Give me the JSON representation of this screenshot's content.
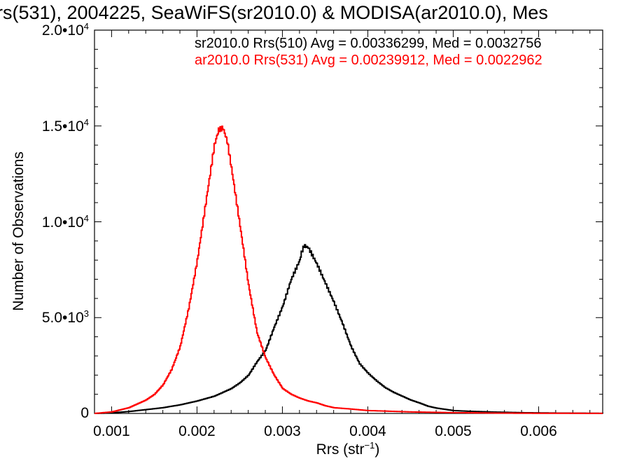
{
  "chart_data": {
    "type": "line",
    "title": "rs(531), 2004225, SeaWiFS(sr2010.0) & MODISA(ar2010.0), Mes",
    "xlabel_text": "Rrs (str",
    "xlabel_sup": "−1",
    "xlabel_close": ")",
    "ylabel": "Number of Observations",
    "xlim": [
      0.0008,
      0.00675
    ],
    "ylim": [
      0,
      20000
    ],
    "x_ticks": [
      {
        "value": 0.001,
        "label": "0.001"
      },
      {
        "value": 0.002,
        "label": "0.002"
      },
      {
        "value": 0.003,
        "label": "0.003"
      },
      {
        "value": 0.004,
        "label": "0.004"
      },
      {
        "value": 0.005,
        "label": "0.005"
      },
      {
        "value": 0.006,
        "label": "0.006"
      }
    ],
    "y_ticks": [
      {
        "value": 0,
        "mant": "0",
        "exp": ""
      },
      {
        "value": 5000,
        "mant": "5.0•10",
        "exp": "3"
      },
      {
        "value": 10000,
        "mant": "1.0•10",
        "exp": "4"
      },
      {
        "value": 15000,
        "mant": "1.5•10",
        "exp": "4"
      },
      {
        "value": 20000,
        "mant": "2.0•10",
        "exp": "4"
      }
    ],
    "grid": false,
    "legend_placement": "top-right",
    "series": [
      {
        "name": "sr2010.0 Rrs(510) Avg = 0.00336299, Med = 0.0032756",
        "color": "#000000",
        "points": [
          [
            0.0008,
            0
          ],
          [
            0.001,
            30
          ],
          [
            0.0012,
            100
          ],
          [
            0.0014,
            200
          ],
          [
            0.0016,
            300
          ],
          [
            0.0018,
            450
          ],
          [
            0.002,
            650
          ],
          [
            0.0022,
            900
          ],
          [
            0.0024,
            1300
          ],
          [
            0.0025,
            1600
          ],
          [
            0.0026,
            2000
          ],
          [
            0.0027,
            2700
          ],
          [
            0.0028,
            3300
          ],
          [
            0.0029,
            4500
          ],
          [
            0.003,
            5600
          ],
          [
            0.0031,
            7000
          ],
          [
            0.0032,
            8000
          ],
          [
            0.00322,
            8400
          ],
          [
            0.00325,
            8750
          ],
          [
            0.0033,
            8650
          ],
          [
            0.0034,
            7800
          ],
          [
            0.0035,
            6800
          ],
          [
            0.0036,
            5800
          ],
          [
            0.0037,
            4700
          ],
          [
            0.0038,
            3500
          ],
          [
            0.0039,
            2600
          ],
          [
            0.004,
            2100
          ],
          [
            0.0041,
            1700
          ],
          [
            0.0042,
            1350
          ],
          [
            0.0043,
            1100
          ],
          [
            0.0044,
            900
          ],
          [
            0.0045,
            700
          ],
          [
            0.0046,
            550
          ],
          [
            0.0047,
            380
          ],
          [
            0.0048,
            280
          ],
          [
            0.005,
            150
          ],
          [
            0.0052,
            110
          ],
          [
            0.0055,
            70
          ],
          [
            0.0058,
            40
          ],
          [
            0.0062,
            20
          ],
          [
            0.0066,
            10
          ],
          [
            0.00675,
            5
          ]
        ]
      },
      {
        "name": "ar2010.0 Rrs(531) Avg = 0.00239912, Med = 0.0022962",
        "color": "#ff0000",
        "points": [
          [
            0.0008,
            0
          ],
          [
            0.001,
            80
          ],
          [
            0.0012,
            300
          ],
          [
            0.0014,
            700
          ],
          [
            0.0015,
            1000
          ],
          [
            0.0016,
            1500
          ],
          [
            0.0017,
            2300
          ],
          [
            0.0018,
            3500
          ],
          [
            0.0019,
            5500
          ],
          [
            0.002,
            8000
          ],
          [
            0.0021,
            11000
          ],
          [
            0.0022,
            14000
          ],
          [
            0.00225,
            14800
          ],
          [
            0.0023,
            14900
          ],
          [
            0.00235,
            14200
          ],
          [
            0.0024,
            12800
          ],
          [
            0.0025,
            9800
          ],
          [
            0.0026,
            6700
          ],
          [
            0.0027,
            4200
          ],
          [
            0.0028,
            2900
          ],
          [
            0.0029,
            2000
          ],
          [
            0.003,
            1300
          ],
          [
            0.0031,
            1000
          ],
          [
            0.0032,
            800
          ],
          [
            0.0033,
            650
          ],
          [
            0.0034,
            550
          ],
          [
            0.0035,
            400
          ],
          [
            0.0036,
            300
          ],
          [
            0.0038,
            230
          ],
          [
            0.004,
            150
          ],
          [
            0.0045,
            80
          ],
          [
            0.005,
            40
          ],
          [
            0.0055,
            20
          ],
          [
            0.006,
            10
          ],
          [
            0.00675,
            5
          ]
        ]
      }
    ]
  }
}
